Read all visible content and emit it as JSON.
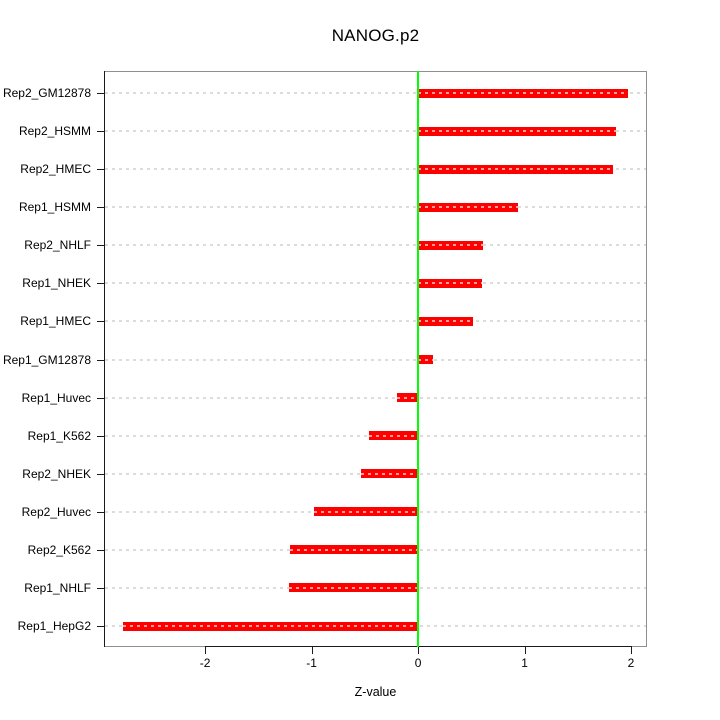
{
  "title": "NANOG.p2",
  "xlabel": "Z-value",
  "chart_data": {
    "type": "bar",
    "orientation": "horizontal",
    "title": "NANOG.p2",
    "xlabel": "Z-value",
    "ylabel": "",
    "categories_top_to_bottom": [
      "Rep2_GM12878",
      "Rep2_HSMM",
      "Rep2_HMEC",
      "Rep1_HSMM",
      "Rep2_NHLF",
      "Rep1_NHEK",
      "Rep1_HMEC",
      "Rep1_GM12878",
      "Rep1_Huvec",
      "Rep1_K562",
      "Rep2_NHEK",
      "Rep2_Huvec",
      "Rep2_K562",
      "Rep1_NHLF",
      "Rep1_HepG2"
    ],
    "values": [
      1.97,
      1.86,
      1.83,
      0.94,
      0.61,
      0.6,
      0.52,
      0.14,
      -0.2,
      -0.46,
      -0.54,
      -0.98,
      -1.2,
      -1.21,
      -2.77
    ],
    "x_ticks": [
      -2,
      -1,
      0,
      1,
      2
    ],
    "x_tick_labels": [
      "-2",
      "-1",
      "0",
      "1",
      "2"
    ],
    "xlim": [
      -2.95,
      2.15
    ],
    "grid": "dashed horizontal reference line per category",
    "legend": "none",
    "colors": {
      "bar": "#ff0000",
      "zero_line": "#00ff00",
      "gridline": "#dcdcdc",
      "box": "#8f8f8f",
      "axis": "#1a1a1a",
      "text": "#000000"
    }
  }
}
